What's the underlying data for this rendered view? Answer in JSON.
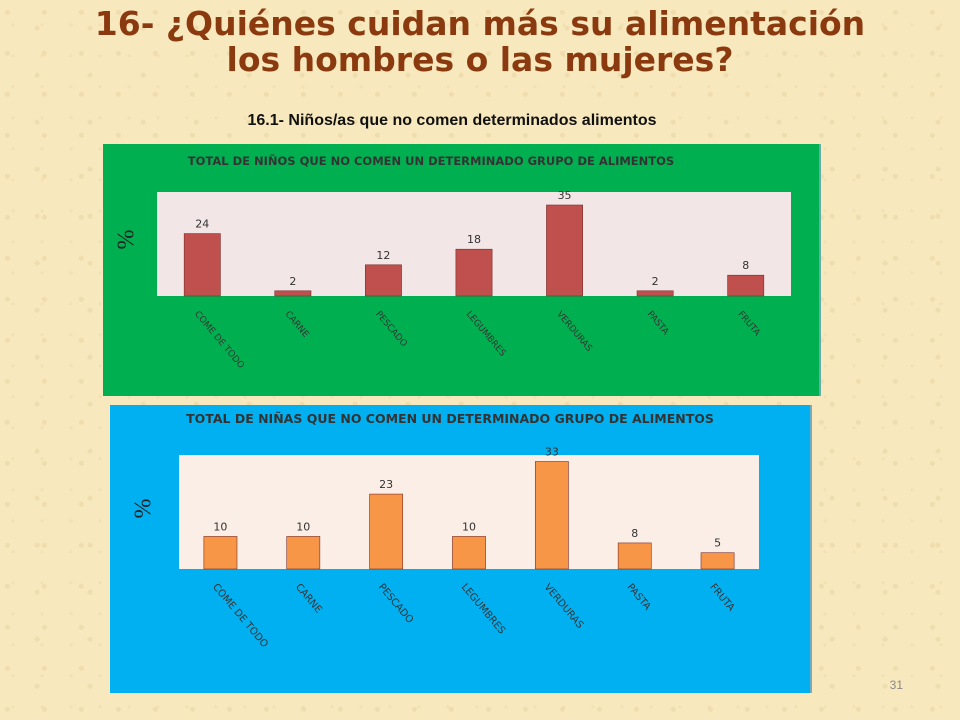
{
  "page": {
    "title_line1": "16- ¿Quiénes cuidan más su alimentación",
    "title_line2": "los hombres o las mujeres?",
    "subtitle": "16.1- Niños/as que no comen determinados alimentos",
    "page_number": "31"
  },
  "colors": {
    "boys_panel": "#00b050",
    "boys_bar": "#c0504d",
    "girls_panel": "#00b0f0",
    "girls_bar": "#f79646",
    "plot_bg_boys": "#f2e6e6",
    "plot_bg_girls": "#fbeee6"
  },
  "chart_data": [
    {
      "type": "bar",
      "title": "TOTAL DE NIÑOS QUE NO COMEN UN DETERMINADO GRUPO DE ALIMENTOS",
      "ylabel": "%",
      "categories": [
        "COME DE TODO",
        "CARNE",
        "PESCADO",
        "LEGUMBRES",
        "VERDURAS",
        "PASTA",
        "FRUTA"
      ],
      "values": [
        24,
        2,
        12,
        18,
        35,
        2,
        8
      ],
      "ylim": [
        0,
        40
      ],
      "grid": false,
      "legend": "none"
    },
    {
      "type": "bar",
      "title": "TOTAL DE NIÑAS QUE NO COMEN UN DETERMINADO GRUPO DE ALIMENTOS",
      "ylabel": "%",
      "categories": [
        "COME DE TODO",
        "CARNE",
        "PESCADO",
        "LEGUMBRES",
        "VERDURAS",
        "PASTA",
        "FRUTA"
      ],
      "values": [
        10,
        10,
        23,
        10,
        33,
        8,
        5
      ],
      "ylim": [
        0,
        35
      ],
      "grid": false,
      "legend": "none"
    }
  ]
}
